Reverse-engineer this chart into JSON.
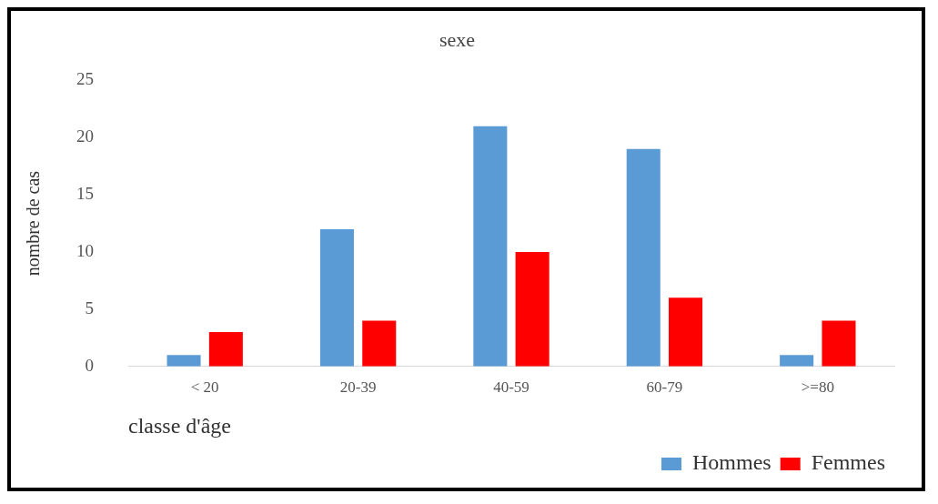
{
  "chart_data": {
    "type": "bar",
    "title": "sexe",
    "ylabel": "nombre de cas",
    "xlabel": "classe d'âge",
    "categories": [
      "< 20",
      "20-39",
      "40-59",
      "60-79",
      ">=80"
    ],
    "series": [
      {
        "name": "Hommes",
        "color": "#5b9bd5",
        "values": [
          1,
          12,
          21,
          19,
          1
        ]
      },
      {
        "name": "Femmes",
        "color": "#ff0000",
        "values": [
          3,
          4,
          10,
          6,
          4
        ]
      }
    ],
    "ylim": [
      0,
      25
    ],
    "yticks": [
      0,
      5,
      10,
      15,
      20,
      25
    ],
    "grid": false,
    "legend": "bottom right"
  }
}
